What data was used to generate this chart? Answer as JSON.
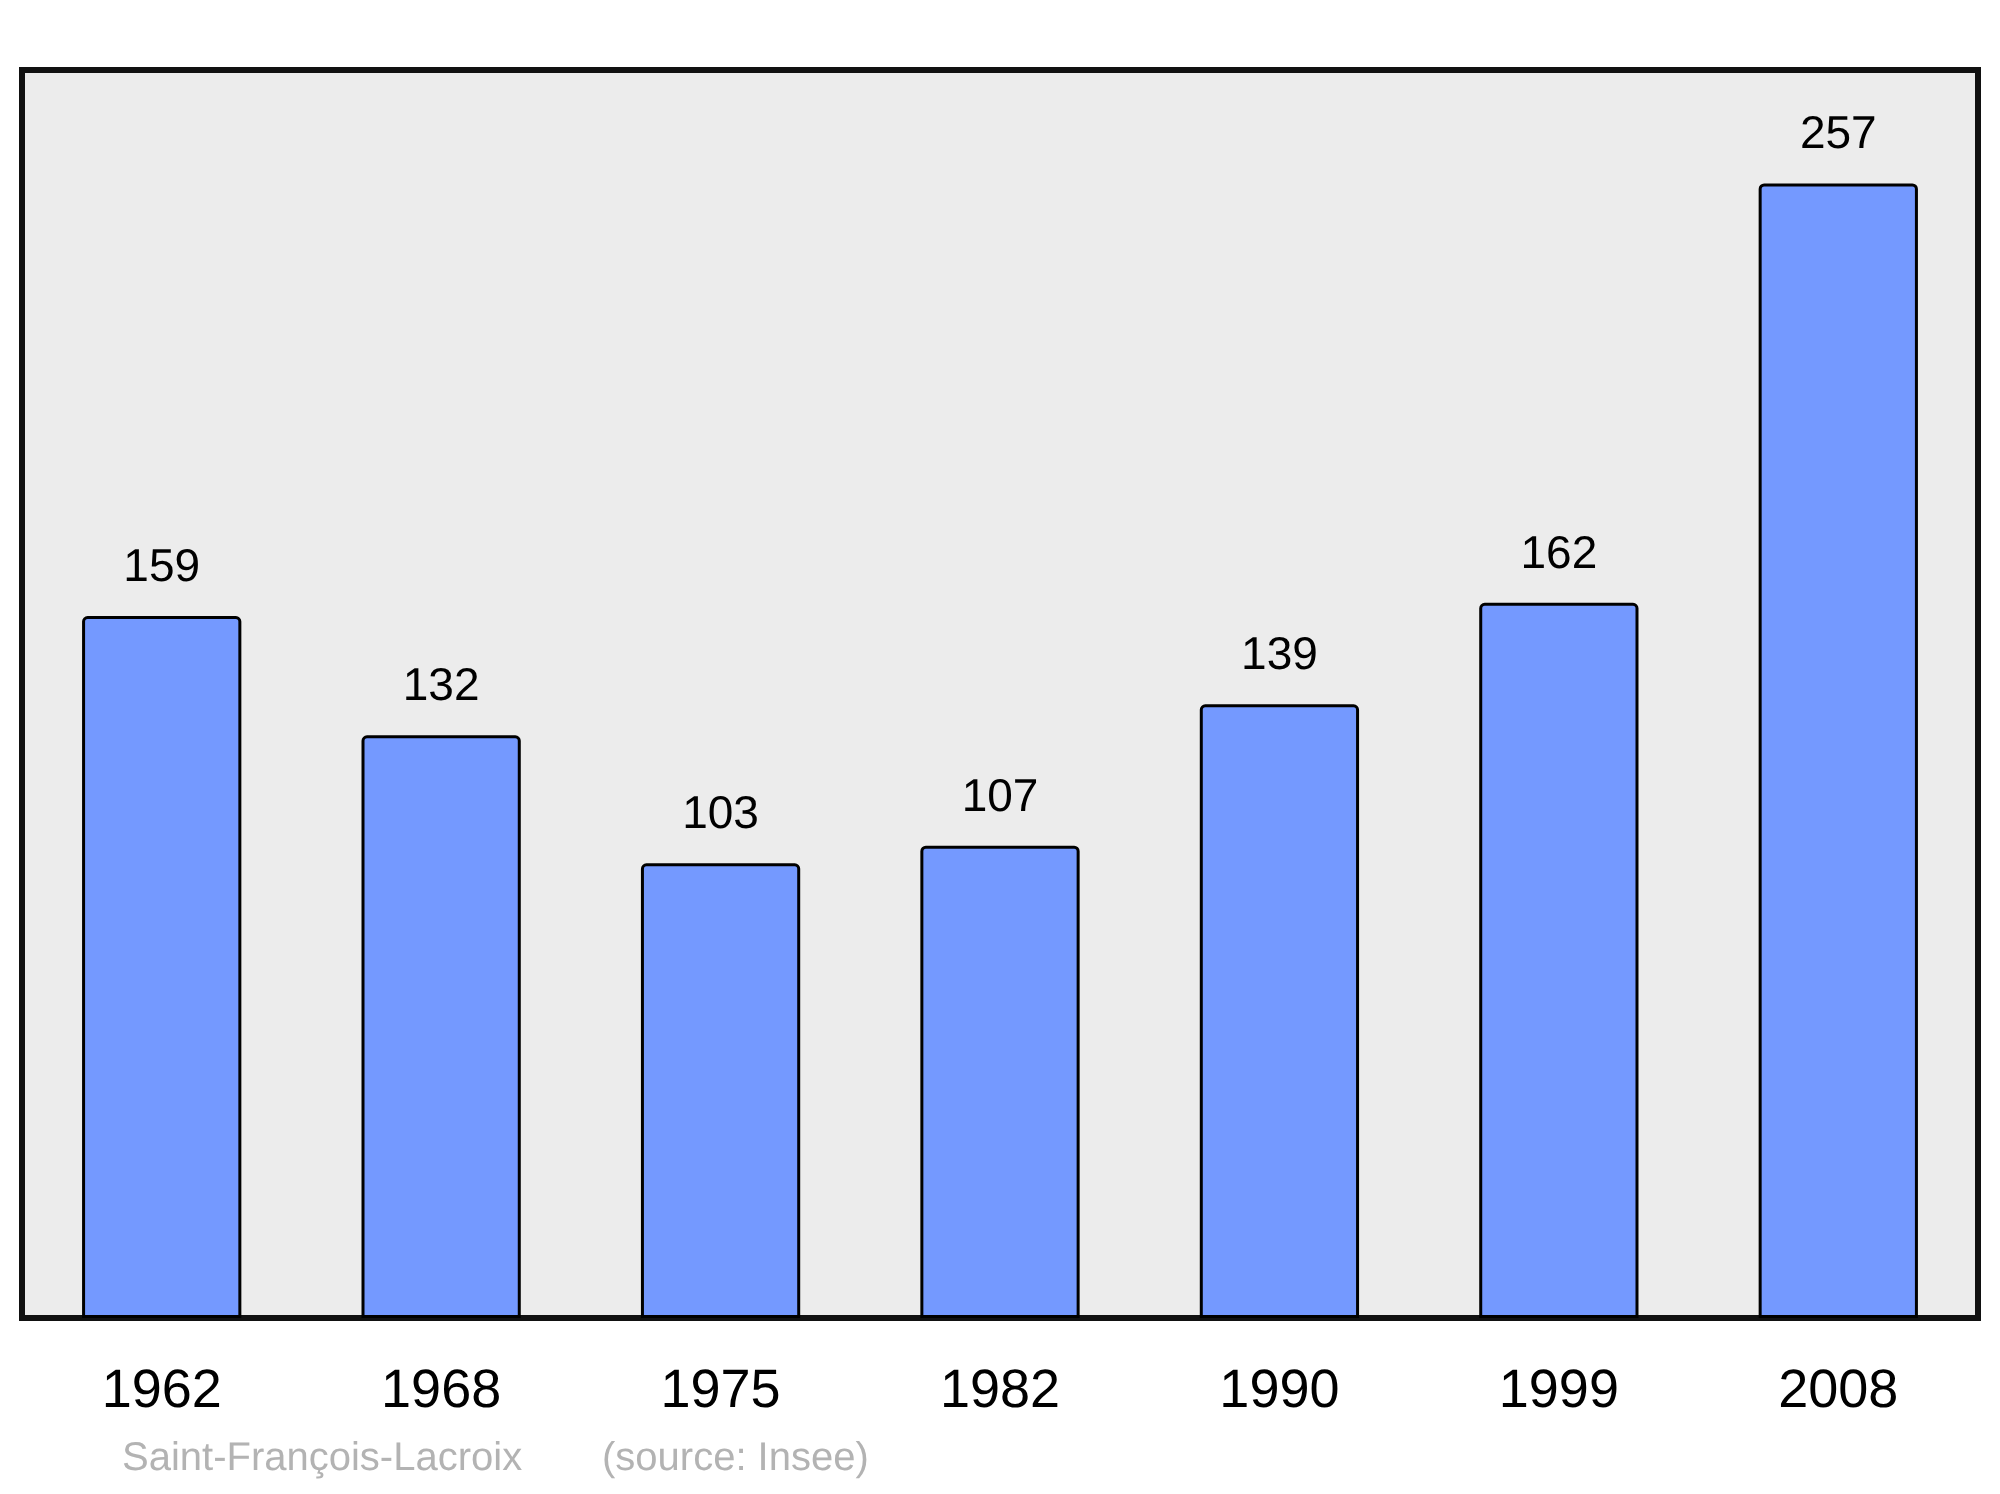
{
  "chart_data": {
    "type": "bar",
    "categories": [
      "1962",
      "1968",
      "1975",
      "1982",
      "1990",
      "1999",
      "2008"
    ],
    "values": [
      159,
      132,
      103,
      107,
      139,
      162,
      257
    ],
    "color": "#7499ff",
    "data_labels": true,
    "annotations": [
      "Saint-François-Lacroix",
      "(source: Insee)"
    ]
  }
}
